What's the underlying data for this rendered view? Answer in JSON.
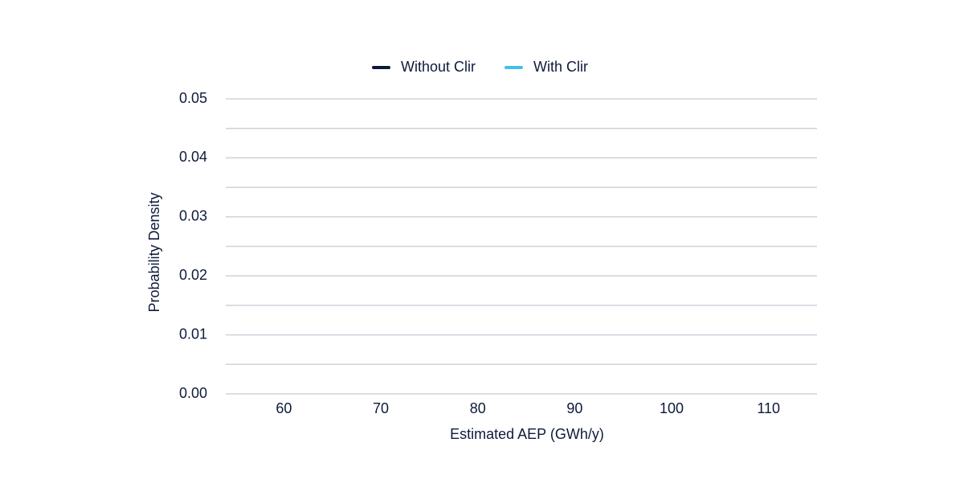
{
  "chart_data": {
    "type": "line",
    "x": [],
    "series": [
      {
        "name": "Without Clir",
        "color": "#0e1a3a",
        "values": []
      },
      {
        "name": "With Clir",
        "color": "#41c0e8",
        "values": []
      }
    ],
    "x_label": "Estimated AEP (GWh/y)",
    "y_label": "Probability Density",
    "xlim": [
      54,
      115
    ],
    "xticks": [
      60,
      70,
      80,
      90,
      100,
      110
    ],
    "ylim": [
      0,
      0.05
    ],
    "yticks": [
      {
        "value": 0,
        "label": "0.00"
      },
      {
        "value": 0.01,
        "label": "0.01"
      },
      {
        "value": 0.02,
        "label": "0.02"
      },
      {
        "value": 0.03,
        "label": "0.03"
      },
      {
        "value": 0.04,
        "label": "0.04"
      },
      {
        "value": 0.05,
        "label": "0.05"
      }
    ],
    "y_minor_ticks": [
      0.005,
      0.015,
      0.025,
      0.035,
      0.045
    ],
    "grid": true,
    "legend": "top"
  }
}
